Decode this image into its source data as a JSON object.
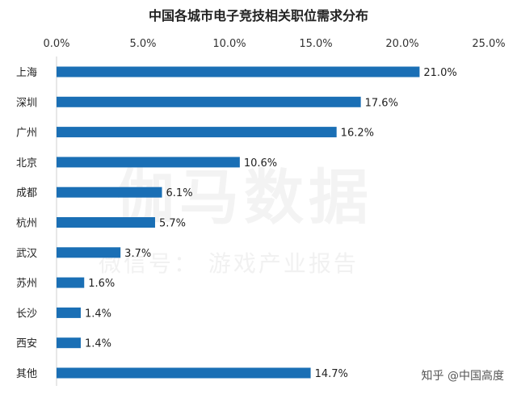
{
  "chart_data": {
    "type": "bar",
    "orientation": "horizontal",
    "title": "中国各城市电子竞技相关职位需求分布",
    "categories": [
      "上海",
      "深圳",
      "广州",
      "北京",
      "成都",
      "杭州",
      "武汉",
      "苏州",
      "长沙",
      "西安",
      "其他"
    ],
    "values": [
      21.0,
      17.6,
      16.2,
      10.6,
      6.1,
      5.7,
      3.7,
      1.6,
      1.4,
      1.4,
      14.7
    ],
    "value_labels": [
      "21.0%",
      "17.6%",
      "16.2%",
      "10.6%",
      "6.1%",
      "5.7%",
      "3.7%",
      "1.6%",
      "1.4%",
      "1.4%",
      "14.7%"
    ],
    "xlim": [
      0,
      25
    ],
    "x_ticks": [
      0,
      5,
      10,
      15,
      20,
      25
    ],
    "x_tick_labels": [
      "0.0%",
      "5.0%",
      "10.0%",
      "15.0%",
      "20.0%",
      "25.0%"
    ],
    "x_axis_position": "top",
    "bar_color": "#1a6fb5",
    "grid": false,
    "legend": "none"
  },
  "watermark": {
    "main": "伽马数据",
    "sub": "微信号： 游戏产业报告"
  },
  "source_label": "知乎 @中国高度"
}
